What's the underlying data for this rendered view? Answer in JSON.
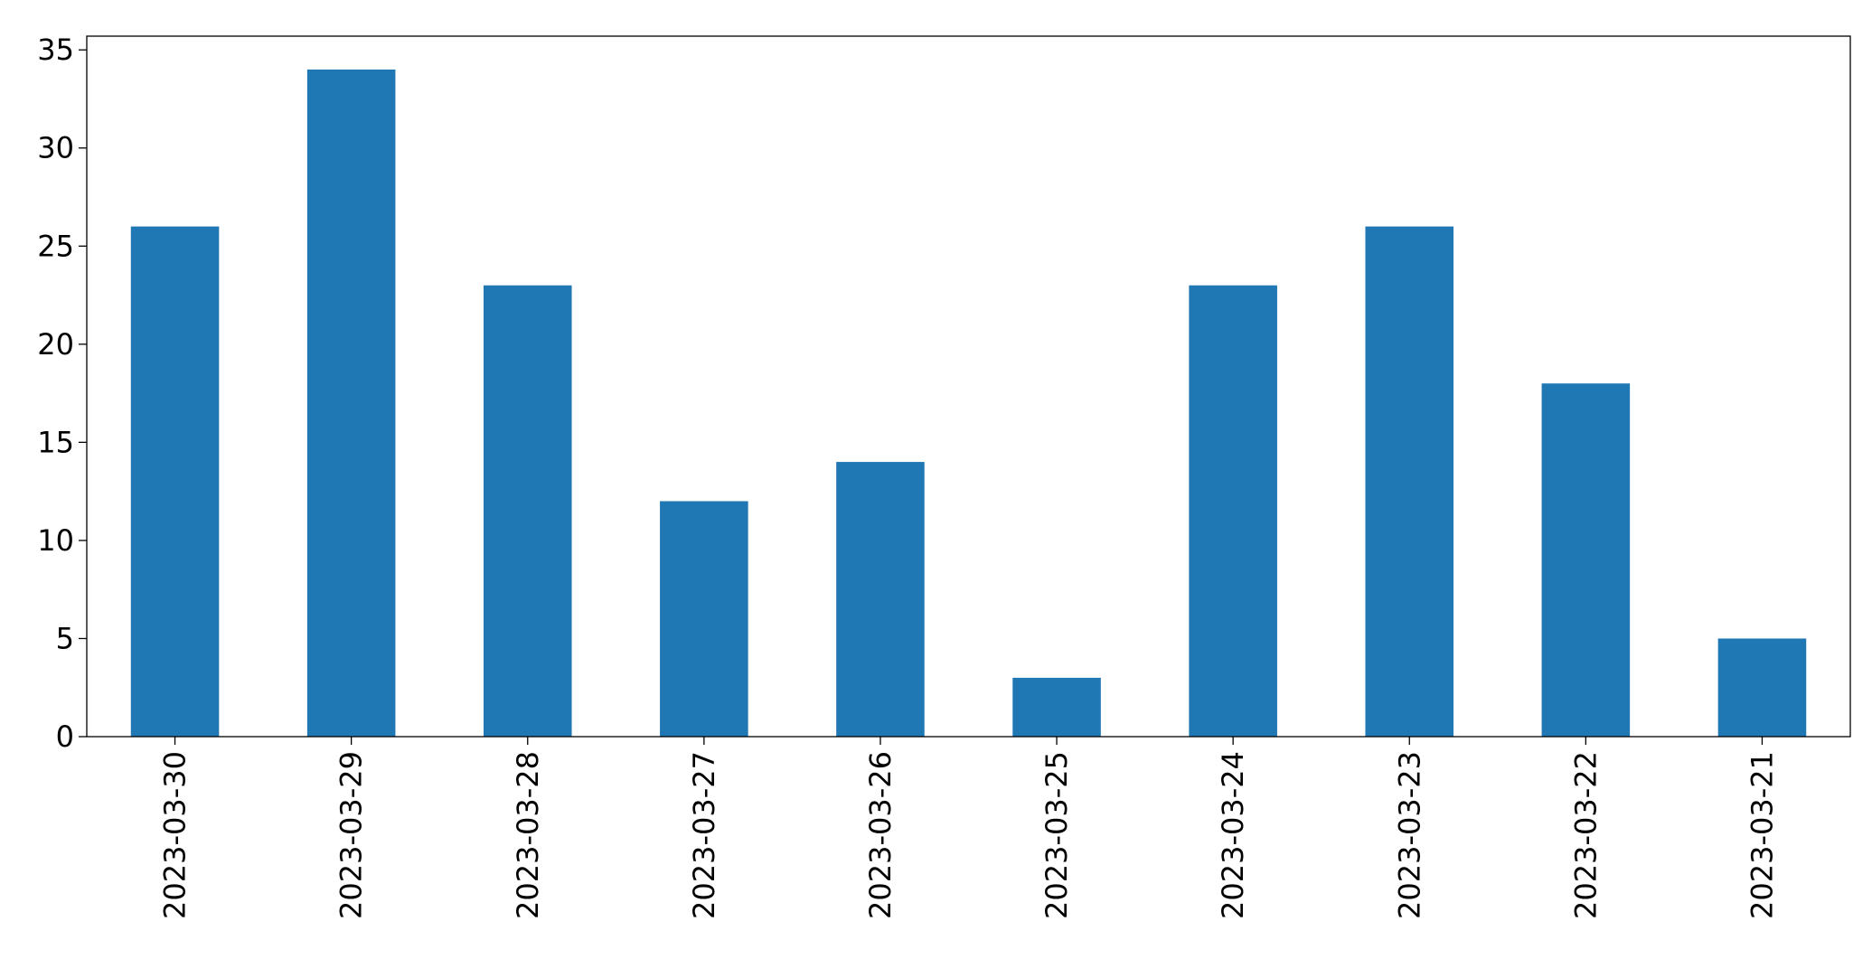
{
  "chart_data": {
    "type": "bar",
    "categories": [
      "2023-03-30",
      "2023-03-29",
      "2023-03-28",
      "2023-03-27",
      "2023-03-26",
      "2023-03-25",
      "2023-03-24",
      "2023-03-23",
      "2023-03-22",
      "2023-03-21"
    ],
    "values": [
      26,
      34,
      23,
      12,
      14,
      3,
      23,
      26,
      18,
      5
    ],
    "color": "#1f77b4",
    "ylim": [
      0,
      35.7
    ],
    "yticks": [
      0,
      5,
      10,
      15,
      20,
      25,
      30,
      35
    ],
    "grid": false
  }
}
